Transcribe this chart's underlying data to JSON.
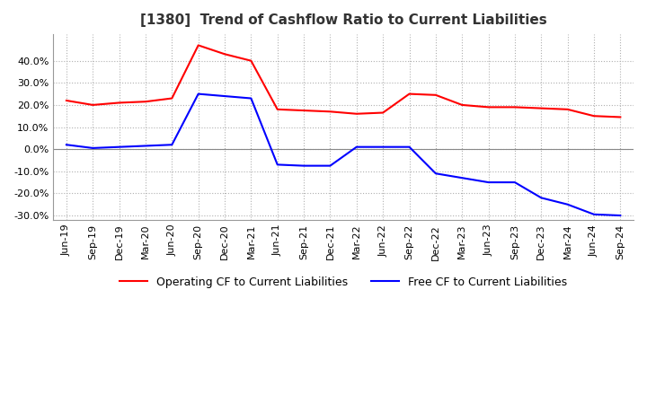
{
  "title": "[1380]  Trend of Cashflow Ratio to Current Liabilities",
  "x_labels": [
    "Jun-19",
    "Sep-19",
    "Dec-19",
    "Mar-20",
    "Jun-20",
    "Sep-20",
    "Dec-20",
    "Mar-21",
    "Jun-21",
    "Sep-21",
    "Dec-21",
    "Mar-22",
    "Jun-22",
    "Sep-22",
    "Dec-22",
    "Mar-23",
    "Jun-23",
    "Sep-23",
    "Dec-23",
    "Mar-24",
    "Jun-24",
    "Sep-24"
  ],
  "operating_cf": [
    22.0,
    20.0,
    21.0,
    21.5,
    23.0,
    47.0,
    43.0,
    40.0,
    18.0,
    17.5,
    17.0,
    16.0,
    16.5,
    25.0,
    24.5,
    20.0,
    19.0,
    19.0,
    18.5,
    18.0,
    15.0,
    14.5
  ],
  "free_cf": [
    2.0,
    0.5,
    1.0,
    1.5,
    2.0,
    25.0,
    24.0,
    23.0,
    -7.0,
    -7.5,
    -7.5,
    1.0,
    1.0,
    1.0,
    -11.0,
    -13.0,
    -15.0,
    -15.0,
    -22.0,
    -25.0,
    -29.5,
    -30.0
  ],
  "ylim": [
    -32,
    52
  ],
  "yticks": [
    -30,
    -20,
    -10,
    0,
    10,
    20,
    30,
    40
  ],
  "operating_color": "#ff0000",
  "free_color": "#0000ff",
  "grid_color": "#b0b0b0",
  "background_color": "#ffffff",
  "legend_operating": "Operating CF to Current Liabilities",
  "legend_free": "Free CF to Current Liabilities",
  "title_fontsize": 11,
  "tick_fontsize": 8,
  "ytick_fontsize": 8
}
